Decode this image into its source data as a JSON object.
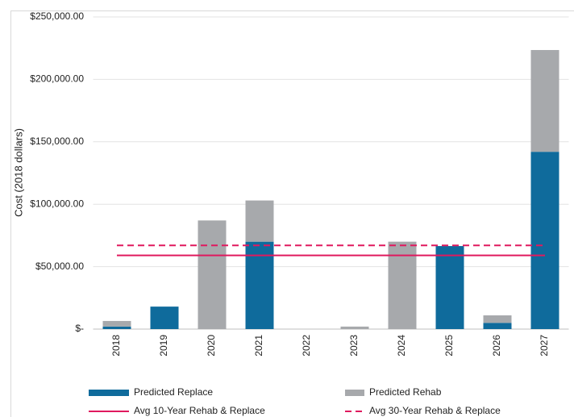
{
  "chart_data": {
    "type": "bar",
    "stacked": true,
    "y_label": "Cost (2018 dollars)",
    "categories": [
      "2018",
      "2019",
      "2020",
      "2021",
      "2022",
      "2023",
      "2024",
      "2025",
      "2026",
      "2027"
    ],
    "series": [
      {
        "name": "Predicted Replace",
        "color": "#0f6b9c",
        "values": [
          2000,
          18000,
          0,
          70000,
          0,
          0,
          0,
          66500,
          5000,
          142000
        ]
      },
      {
        "name": "Predicted Rehab",
        "color": "#a7a9ac",
        "values": [
          4500,
          0,
          87000,
          33000,
          0,
          2000,
          70000,
          0,
          6000,
          81500
        ]
      }
    ],
    "reference_lines": [
      {
        "name": "Avg 10-Year Rehab & Replace",
        "color": "#e0195e",
        "style": "solid",
        "value": 59000
      },
      {
        "name": "Avg 30-Year Rehab & Replace",
        "color": "#e0195e",
        "style": "dashed",
        "value": 67000
      }
    ],
    "ylim": [
      0,
      250000
    ],
    "yticks": [
      {
        "value": 0,
        "label": "$-"
      },
      {
        "value": 50000,
        "label": "$50,000.00"
      },
      {
        "value": 100000,
        "label": "$100,000.00"
      },
      {
        "value": 150000,
        "label": "$150,000.00"
      },
      {
        "value": 200000,
        "label": "$200,000.00"
      },
      {
        "value": 250000,
        "label": "$250,000.00"
      }
    ],
    "grid": true,
    "legend": "bottom"
  }
}
